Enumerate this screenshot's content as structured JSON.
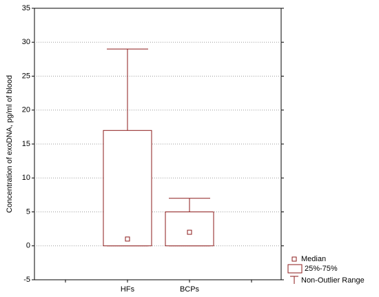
{
  "chart_data": {
    "type": "box",
    "y_label": "Concentration of exoDNA, pg/ml of blood",
    "categories": [
      "HFs",
      "BCPs"
    ],
    "min": [
      0,
      0
    ],
    "q1": [
      0,
      0
    ],
    "median": [
      1,
      2
    ],
    "q3": [
      17,
      5
    ],
    "max": [
      29,
      7
    ],
    "color": "#8b1a1a",
    "ylim": [
      -5,
      35
    ],
    "yticks": [
      -5,
      0,
      5,
      10,
      15,
      20,
      25,
      30,
      35
    ],
    "grid": true,
    "legend_labels": {
      "median": "Median",
      "box": "25%-75%",
      "whisker": "Non-Outlier Range"
    },
    "legend_position": "bottom-right"
  }
}
